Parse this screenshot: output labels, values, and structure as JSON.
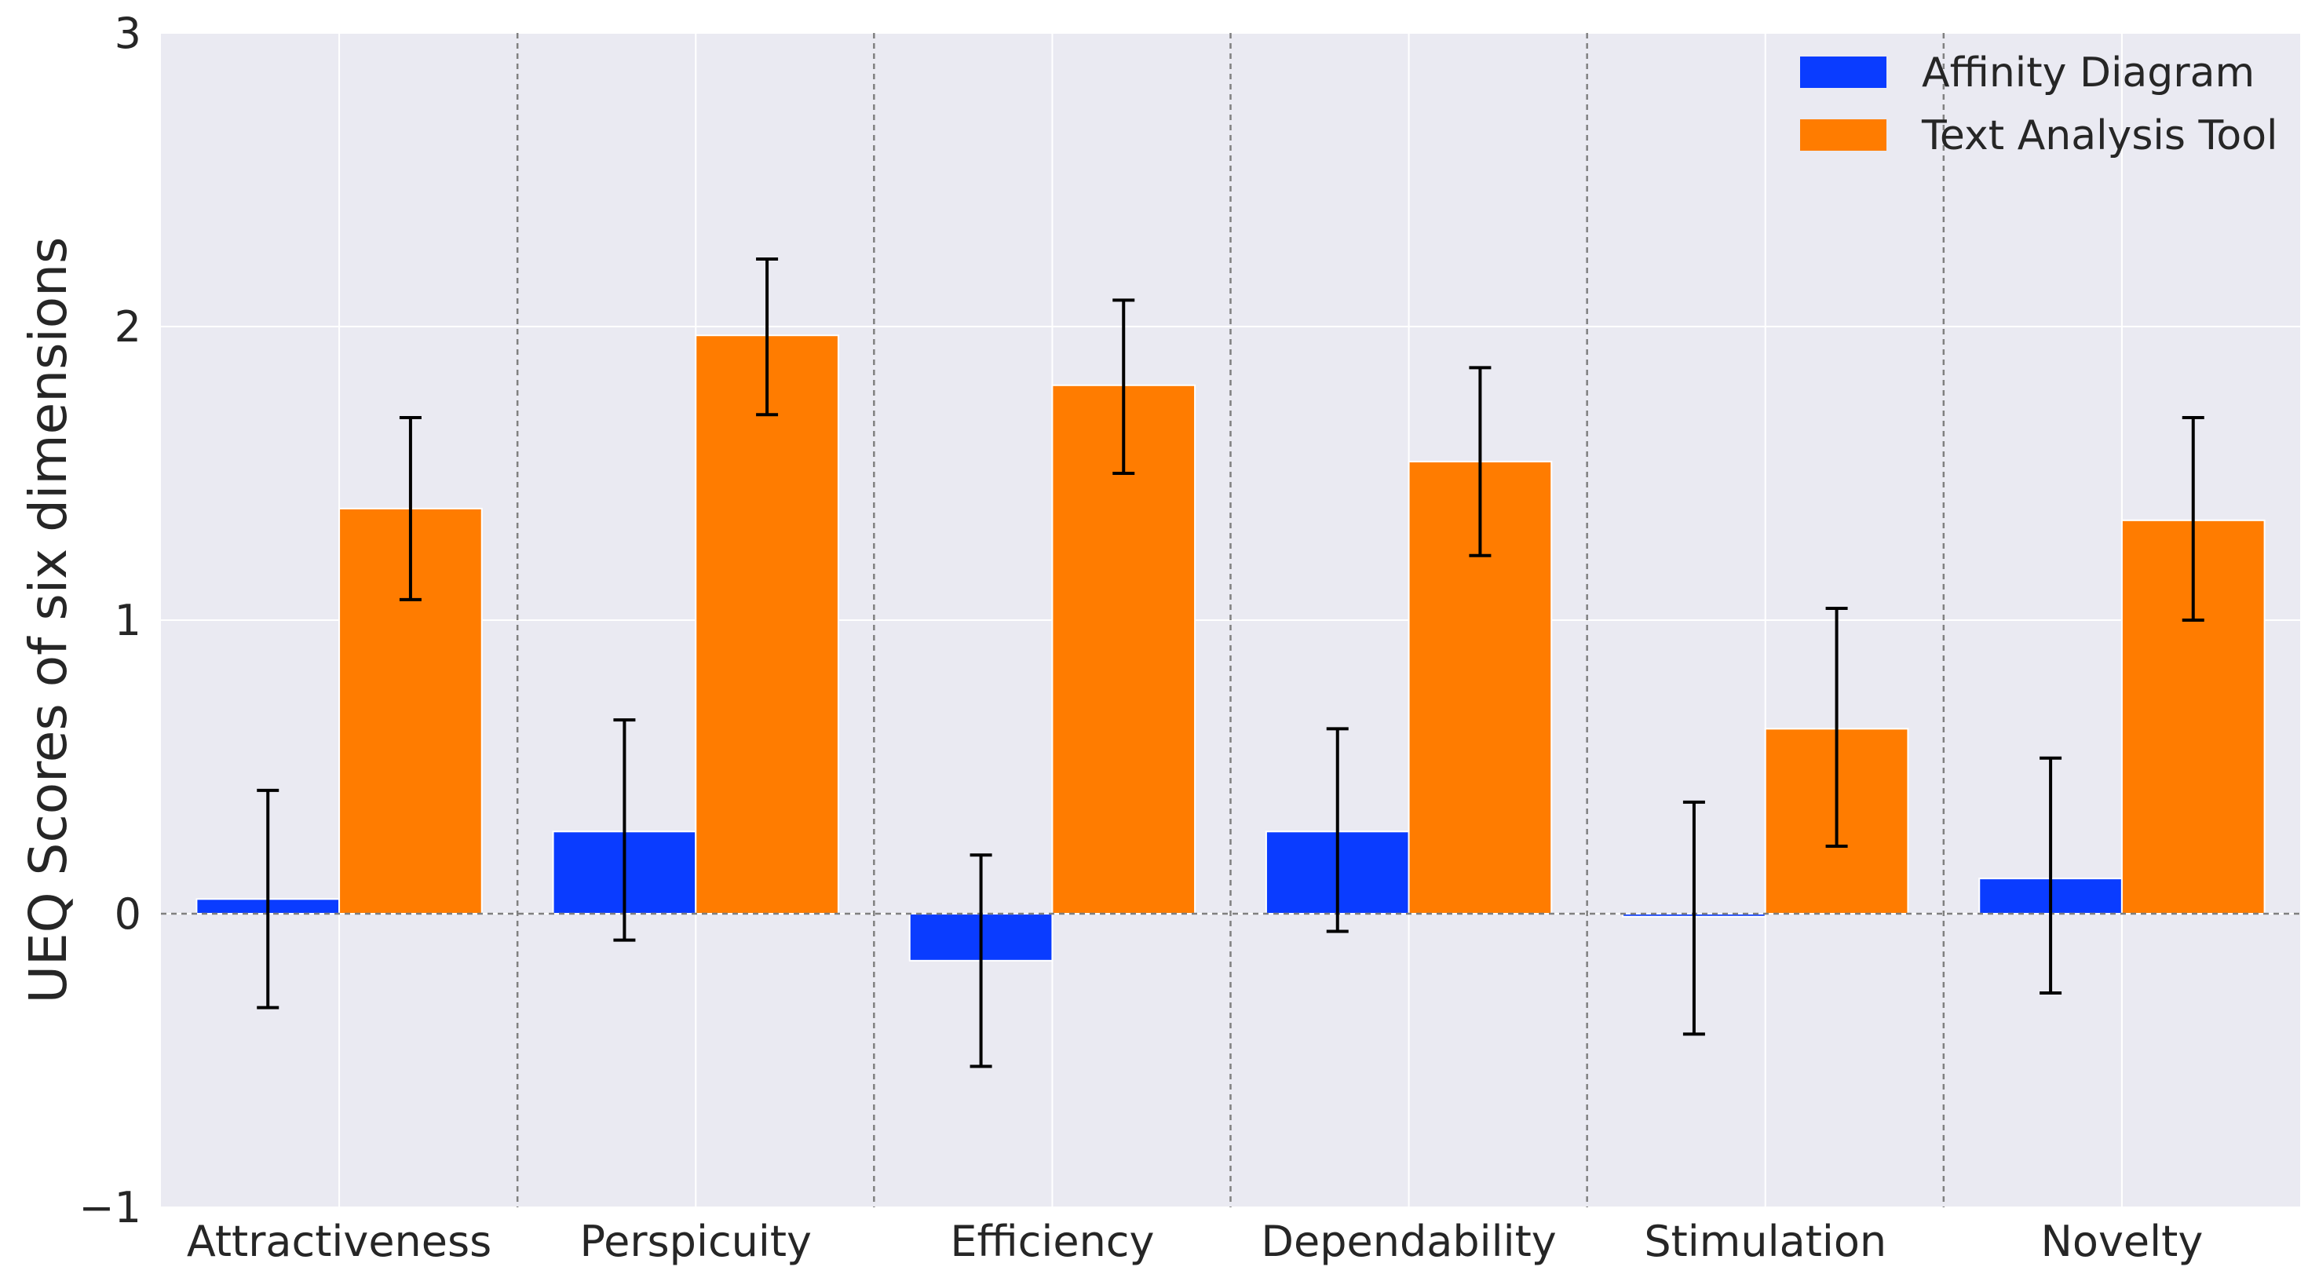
{
  "chart_data": {
    "type": "bar",
    "ylabel": "UEQ Scores of six dimensions",
    "xlabel": "",
    "ylim": [
      -1,
      3
    ],
    "yticks": [
      -1,
      0,
      1,
      2,
      3
    ],
    "ytick_labels": [
      "−1",
      "0",
      "1",
      "2",
      "3"
    ],
    "grid": true,
    "legend_position": "top-right",
    "categories": [
      "Attractiveness",
      "Perspicuity",
      "Efficiency",
      "Dependability",
      "Stimulation",
      "Novelty"
    ],
    "series": [
      {
        "name": "Affinity Diagram",
        "color": "#0a3cff",
        "values": [
          0.05,
          0.28,
          -0.16,
          0.28,
          -0.01,
          0.12
        ],
        "error_low": [
          -0.32,
          -0.09,
          -0.52,
          -0.06,
          -0.41,
          -0.27
        ],
        "error_high": [
          0.42,
          0.66,
          0.2,
          0.63,
          0.38,
          0.53
        ]
      },
      {
        "name": "Text Analysis Tool",
        "color": "#ff7c00",
        "values": [
          1.38,
          1.97,
          1.8,
          1.54,
          0.63,
          1.34
        ],
        "error_low": [
          1.07,
          1.7,
          1.5,
          1.22,
          0.23,
          1.0
        ],
        "error_high": [
          1.69,
          2.23,
          2.09,
          1.86,
          1.04,
          1.69
        ]
      }
    ]
  }
}
